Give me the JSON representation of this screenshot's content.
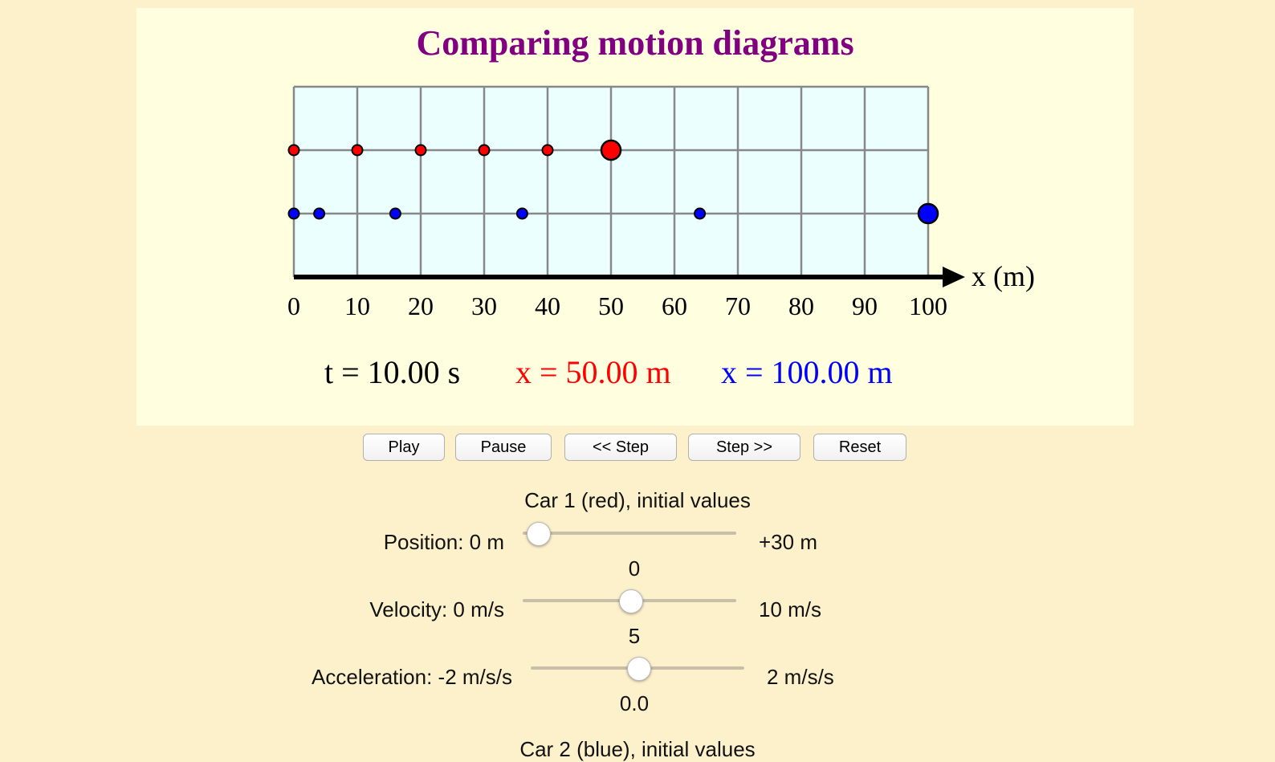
{
  "title": "Comparing motion diagrams",
  "diagram": {
    "axis_label": "x (m)",
    "tick_labels": [
      "0",
      "10",
      "20",
      "30",
      "40",
      "50",
      "60",
      "70",
      "80",
      "90",
      "100"
    ],
    "car1_positions_m": [
      0,
      10,
      20,
      30,
      40,
      50
    ],
    "car2_positions_m": [
      0,
      4,
      16,
      36,
      64,
      100
    ],
    "car1_color": "#ff0000",
    "car2_color": "#0000ff"
  },
  "readout": {
    "time": "t = 10.00 s",
    "car1_x": "x = 50.00 m",
    "car2_x": "x = 100.00 m"
  },
  "buttons": {
    "play": "Play",
    "pause": "Pause",
    "step_back": "<< Step",
    "step_forward": "Step >>",
    "reset": "Reset"
  },
  "car1": {
    "heading": "Car 1 (red), initial values",
    "position": {
      "min_label": "Position: 0 m",
      "max_label": "+30 m",
      "value": "0",
      "fraction": 0.0
    },
    "velocity": {
      "min_label": "Velocity: 0 m/s",
      "max_label": "10 m/s",
      "value": "5",
      "fraction": 0.5
    },
    "acceleration": {
      "min_label": "Acceleration: -2 m/s/s",
      "max_label": "2 m/s/s",
      "value": "0.0",
      "fraction": 0.5
    }
  },
  "car2": {
    "heading": "Car 2 (blue), initial values"
  }
}
